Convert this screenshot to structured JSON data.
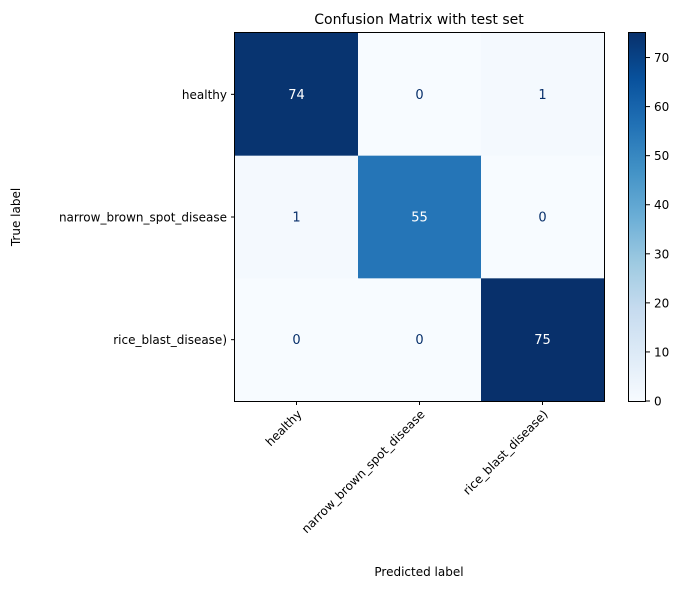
{
  "chart_data": {
    "type": "heatmap",
    "title": "Confusion Matrix with test set",
    "xlabel": "Predicted label",
    "ylabel": "True label",
    "rows": [
      "healthy",
      "narrow_brown_spot_disease",
      "rice_blast_disease)"
    ],
    "columns": [
      "healthy",
      "narrow_brown_spot_disease",
      "rice_blast_disease)"
    ],
    "values": [
      [
        74,
        0,
        1
      ],
      [
        1,
        55,
        0
      ],
      [
        0,
        0,
        75
      ]
    ],
    "colormap": "Blues",
    "colorbar": {
      "range": [
        0,
        75
      ],
      "ticks": [
        "0",
        "10",
        "20",
        "30",
        "40",
        "50",
        "60",
        "70"
      ]
    },
    "colors": {
      "low": "#f7fbff",
      "high": "#08306b",
      "text_dark": "#08306b",
      "text_light": "#ffffff"
    }
  }
}
